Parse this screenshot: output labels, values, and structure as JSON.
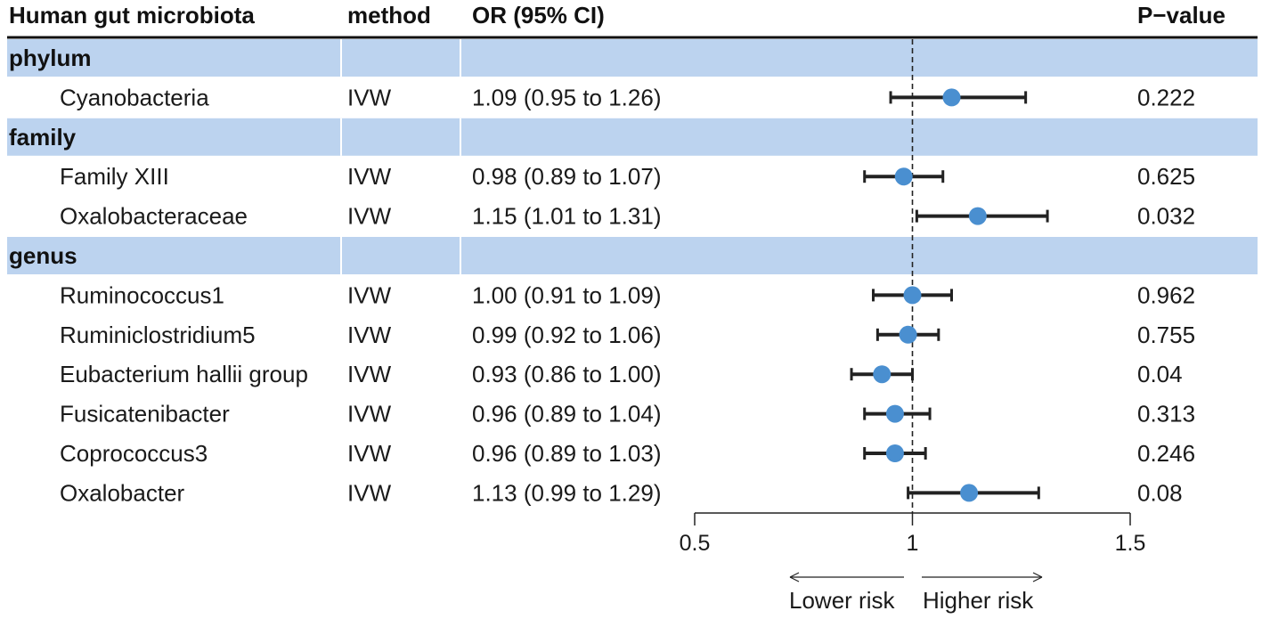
{
  "header": {
    "col_microbiota": "Human gut microbiota",
    "col_method": "method",
    "col_or": "OR (95% CI)",
    "col_p": "P−value"
  },
  "axis": {
    "ticks": [
      "0.5",
      "1",
      "1.5"
    ],
    "lower_label": "Lower risk",
    "higher_label": "Higher risk"
  },
  "colors": {
    "band": "#bcd3ef",
    "point": "#4a8fd0",
    "line": "#222222"
  },
  "chart_data": {
    "type": "forest",
    "xlim": [
      0.5,
      1.5
    ],
    "xticks": [
      0.5,
      1,
      1.5
    ],
    "reference_line": 1,
    "rows": [
      {
        "kind": "group",
        "label": "phylum"
      },
      {
        "kind": "item",
        "name": "Cyanobacteria",
        "method": "IVW",
        "or_text": "1.09 (0.95 to 1.26)",
        "p": "0.222",
        "or": 1.09,
        "lo": 0.95,
        "hi": 1.26
      },
      {
        "kind": "group",
        "label": "family"
      },
      {
        "kind": "item",
        "name": "Family XIII",
        "method": "IVW",
        "or_text": "0.98 (0.89 to 1.07)",
        "p": "0.625",
        "or": 0.98,
        "lo": 0.89,
        "hi": 1.07
      },
      {
        "kind": "item",
        "name": "Oxalobacteraceae",
        "method": "IVW",
        "or_text": "1.15 (1.01 to 1.31)",
        "p": "0.032",
        "or": 1.15,
        "lo": 1.01,
        "hi": 1.31
      },
      {
        "kind": "group",
        "label": "genus"
      },
      {
        "kind": "item",
        "name": "Ruminococcus1",
        "method": "IVW",
        "or_text": "1.00 (0.91 to 1.09)",
        "p": "0.962",
        "or": 1.0,
        "lo": 0.91,
        "hi": 1.09
      },
      {
        "kind": "item",
        "name": "Ruminiclostridium5",
        "method": "IVW",
        "or_text": "0.99 (0.92 to 1.06)",
        "p": "0.755",
        "or": 0.99,
        "lo": 0.92,
        "hi": 1.06
      },
      {
        "kind": "item",
        "name": "Eubacterium hallii group",
        "method": "IVW",
        "or_text": "0.93 (0.86 to 1.00)",
        "p": "0.04",
        "or": 0.93,
        "lo": 0.86,
        "hi": 1.0
      },
      {
        "kind": "item",
        "name": "Fusicatenibacter",
        "method": "IVW",
        "or_text": "0.96 (0.89 to 1.04)",
        "p": "0.313",
        "or": 0.96,
        "lo": 0.89,
        "hi": 1.04
      },
      {
        "kind": "item",
        "name": "Coprococcus3",
        "method": "IVW",
        "or_text": "0.96 (0.89 to 1.03)",
        "p": "0.246",
        "or": 0.96,
        "lo": 0.89,
        "hi": 1.03
      },
      {
        "kind": "item",
        "name": "Oxalobacter",
        "method": "IVW",
        "or_text": "1.13 (0.99 to 1.29)",
        "p": "0.08",
        "or": 1.13,
        "lo": 0.99,
        "hi": 1.29
      }
    ]
  }
}
